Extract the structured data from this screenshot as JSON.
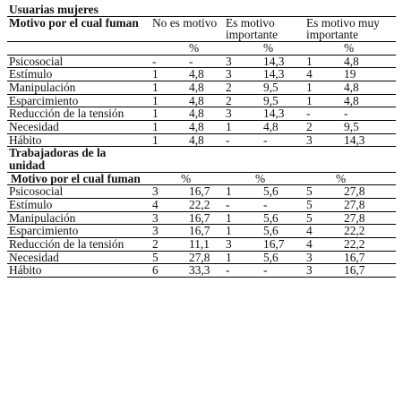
{
  "section1": {
    "title": "Usuarias mujeres",
    "motivo_header": "Motivo por el cual fuman",
    "col_headers": [
      "No es motivo",
      "Es motivo importante",
      "Es motivo muy importante"
    ],
    "pct": "%",
    "rows": [
      {
        "label": "Psicosocial",
        "values": [
          "-",
          "-",
          "3",
          "14,3",
          "1",
          "4,8"
        ]
      },
      {
        "label": "Estímulo",
        "values": [
          "1",
          "4,8",
          "3",
          "14,3",
          "4",
          "19"
        ]
      },
      {
        "label": "Manipulación",
        "values": [
          "1",
          "4,8",
          "2",
          "9,5",
          "1",
          "4,8"
        ]
      },
      {
        "label": "Esparcimiento",
        "values": [
          "1",
          "4,8",
          "2",
          "9,5",
          "1",
          "4,8"
        ]
      },
      {
        "label": "Reducción de la tensión",
        "values": [
          "1",
          "4,8",
          "3",
          "14,3",
          "-",
          "-"
        ]
      },
      {
        "label": "Necesidad",
        "values": [
          "1",
          "4,8",
          "1",
          "4,8",
          "2",
          "9,5"
        ]
      },
      {
        "label": "Hábito",
        "values": [
          "1",
          "4,8",
          "-",
          "-",
          "3",
          "14,3"
        ]
      }
    ]
  },
  "section2": {
    "title": "Trabajadoras de la unidad",
    "motivo_header": "Motivo por el cual fuman",
    "pct": "%",
    "rows": [
      {
        "label": "Psicosocial",
        "values": [
          "3",
          "16,7",
          "1",
          "5,6",
          "5",
          "27,8"
        ]
      },
      {
        "label": "Estímulo",
        "values": [
          "4",
          "22,2",
          "-",
          "-",
          "5",
          "27,8"
        ]
      },
      {
        "label": "Manipulación",
        "values": [
          "3",
          "16,7",
          "1",
          "5,6",
          "5",
          "27,8"
        ]
      },
      {
        "label": "Esparcimiento",
        "values": [
          "3",
          "16,7",
          "1",
          "5,6",
          "4",
          "22,2"
        ]
      },
      {
        "label": "Reducción de la tensión",
        "values": [
          "2",
          "11,1",
          "3",
          "16,7",
          "4",
          "22,2"
        ]
      },
      {
        "label": "Necesidad",
        "values": [
          "5",
          "27,8",
          "1",
          "5,6",
          "3",
          "16,7"
        ]
      },
      {
        "label": "Hábito",
        "values": [
          "6",
          "33,3",
          "-",
          "-",
          "3",
          "16,7"
        ]
      }
    ]
  }
}
